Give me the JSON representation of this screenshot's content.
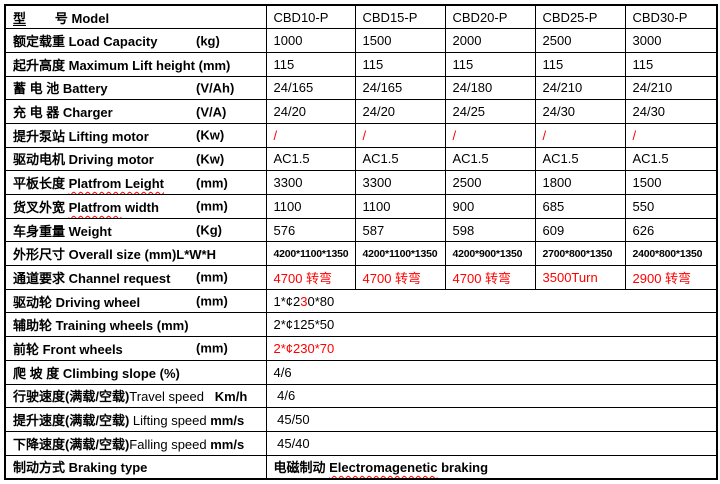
{
  "colors": {
    "text": "#000000",
    "red": "#ff0000",
    "border": "#000000",
    "background": "#ffffff"
  },
  "table": {
    "models": [
      "CBD10-P",
      "CBD15-P",
      "CBD20-P",
      "CBD25-P",
      "CBD30-P"
    ],
    "rows": [
      {
        "name": "model",
        "label": [
          {
            "t": "型",
            "u": 1
          },
          {
            "t": "        号 "
          },
          {
            "t": "Model"
          }
        ],
        "cells": [
          [
            {
              "t": "CBD10-P"
            }
          ],
          [
            {
              "t": "CBD15-P"
            }
          ],
          [
            {
              "t": "CBD20-P"
            }
          ],
          [
            {
              "t": "CBD25-P"
            }
          ],
          [
            {
              "t": "CBD30-P"
            }
          ]
        ]
      },
      {
        "name": "load-capacity",
        "label": [
          {
            "t": "额定载重 Load Capacity"
          },
          {
            "t": "(kg)",
            "unit": 1
          }
        ],
        "cells": [
          [
            {
              "t": "1000"
            }
          ],
          [
            {
              "t": "1500"
            }
          ],
          [
            {
              "t": "2000"
            }
          ],
          [
            {
              "t": "2500"
            }
          ],
          [
            {
              "t": "3000"
            }
          ]
        ]
      },
      {
        "name": "max-lift-height",
        "label": [
          {
            "t": "起升高度 Maximum Lift height (mm)"
          }
        ],
        "cells": [
          [
            {
              "t": "115"
            }
          ],
          [
            {
              "t": "115"
            }
          ],
          [
            {
              "t": "115"
            }
          ],
          [
            {
              "t": "115"
            }
          ],
          [
            {
              "t": "115"
            }
          ]
        ]
      },
      {
        "name": "battery",
        "label": [
          {
            "t": "蓄 电 池 Battery"
          },
          {
            "t": "(V/Ah)",
            "unit": 1
          }
        ],
        "cells": [
          [
            {
              "t": "24/165"
            }
          ],
          [
            {
              "t": "24/165"
            }
          ],
          [
            {
              "t": "24/180"
            }
          ],
          [
            {
              "t": "24/210"
            }
          ],
          [
            {
              "t": "24/210"
            }
          ]
        ]
      },
      {
        "name": "charger",
        "label": [
          {
            "t": "充 电 器 Charger"
          },
          {
            "t": "(V/A)",
            "unit": 1
          }
        ],
        "cells": [
          [
            {
              "t": "24/20"
            }
          ],
          [
            {
              "t": "24/20"
            }
          ],
          [
            {
              "t": "24/25"
            }
          ],
          [
            {
              "t": "24/30"
            }
          ],
          [
            {
              "t": "24/30"
            }
          ]
        ]
      },
      {
        "name": "lifting-motor",
        "label": [
          {
            "t": "提升泵站 Lifting motor"
          },
          {
            "t": "(Kw)",
            "unit": 1
          }
        ],
        "cells": [
          [
            {
              "t": "/",
              "red": 1
            }
          ],
          [
            {
              "t": "/",
              "red": 1
            }
          ],
          [
            {
              "t": "/",
              "red": 1
            }
          ],
          [
            {
              "t": "/",
              "red": 1
            }
          ],
          [
            {
              "t": "/",
              "red": 1
            }
          ]
        ]
      },
      {
        "name": "driving-motor",
        "label": [
          {
            "t": "驱动电机 Driving motor"
          },
          {
            "t": "(Kw)",
            "unit": 1
          }
        ],
        "cells": [
          [
            {
              "t": "AC1.5"
            }
          ],
          [
            {
              "t": "AC1.5"
            }
          ],
          [
            {
              "t": "AC1.5"
            }
          ],
          [
            {
              "t": "AC1.5"
            }
          ],
          [
            {
              "t": "AC1.5"
            }
          ]
        ]
      },
      {
        "name": "platform-length",
        "label": [
          {
            "t": "平板长度 "
          },
          {
            "t": "Platfrom Leight",
            "wavy": 1
          },
          {
            "t": "(mm)",
            "unit": 1
          }
        ],
        "cells": [
          [
            {
              "t": "3300"
            }
          ],
          [
            {
              "t": "3300"
            }
          ],
          [
            {
              "t": "2500"
            }
          ],
          [
            {
              "t": "1800"
            }
          ],
          [
            {
              "t": "1500"
            }
          ]
        ]
      },
      {
        "name": "platform-width",
        "label": [
          {
            "t": "货叉外宽 "
          },
          {
            "t": "Platfrom",
            "wavy": 1
          },
          {
            "t": " width"
          },
          {
            "t": "(mm)",
            "unit": 1
          }
        ],
        "cells": [
          [
            {
              "t": "1100"
            }
          ],
          [
            {
              "t": "1100"
            }
          ],
          [
            {
              "t": "900"
            }
          ],
          [
            {
              "t": "685"
            }
          ],
          [
            {
              "t": "550"
            }
          ]
        ]
      },
      {
        "name": "weight",
        "label": [
          {
            "t": "车身重量 Weight"
          },
          {
            "t": "(Kg)",
            "unit": 1
          }
        ],
        "cells": [
          [
            {
              "t": "576"
            }
          ],
          [
            {
              "t": "587"
            }
          ],
          [
            {
              "t": "598"
            }
          ],
          [
            {
              "t": "609"
            }
          ],
          [
            {
              "t": "626"
            }
          ]
        ]
      },
      {
        "name": "overall-size",
        "small": 1,
        "label": [
          {
            "t": "外形尺寸 Overall size (mm)L*W*H"
          }
        ],
        "cells": [
          [
            {
              "t": "4200*1100*1350"
            }
          ],
          [
            {
              "t": "4200*1100*1350"
            }
          ],
          [
            {
              "t": "4200*900*1350"
            }
          ],
          [
            {
              "t": "2700*800*1350"
            }
          ],
          [
            {
              "t": "2400*800*1350"
            }
          ]
        ]
      },
      {
        "name": "channel-request",
        "label": [
          {
            "t": "通道要求 Channel request"
          },
          {
            "t": "(mm)",
            "unit": 1
          }
        ],
        "cells": [
          [
            {
              "t": "4700 转弯",
              "red": 1
            }
          ],
          [
            {
              "t": "4700 转弯",
              "red": 1
            }
          ],
          [
            {
              "t": "4700 转弯",
              "red": 1
            }
          ],
          [
            {
              "t": "3500Turn",
              "red": 1
            }
          ],
          [
            {
              "t": "2900 转弯",
              "red": 1
            }
          ]
        ]
      },
      {
        "name": "driving-wheel",
        "label": [
          {
            "t": "驱动轮 Driving wheel"
          },
          {
            "t": "(mm)",
            "unit": 1
          }
        ],
        "span_cell": [
          {
            "t": "1*¢2"
          },
          {
            "t": "3",
            "red": 1
          },
          {
            "t": "0*80"
          }
        ]
      },
      {
        "name": "training-wheels",
        "label": [
          {
            "t": "辅助轮 Training wheels (mm)"
          }
        ],
        "span_cell": [
          {
            "t": "2*¢125*50"
          }
        ]
      },
      {
        "name": "front-wheels",
        "label": [
          {
            "t": "前轮 Front wheels"
          },
          {
            "t": "(mm)",
            "unit": 1
          }
        ],
        "span_cell": [
          {
            "t": "2*¢230*70",
            "red": 1
          }
        ]
      },
      {
        "name": "climbing-slope",
        "label": [
          {
            "t": "爬 坡 度 Climbing slope (%)"
          }
        ],
        "span_cell": [
          {
            "t": "4/6"
          }
        ]
      },
      {
        "name": "travel-speed",
        "label": [
          {
            "t": "行驶速度(满载/空载)"
          },
          {
            "t": "Travel speed",
            "nb": 1
          },
          {
            "t": "   Km/h"
          }
        ],
        "span_cell": [
          {
            "t": " 4/6"
          }
        ]
      },
      {
        "name": "lifting-speed",
        "label": [
          {
            "t": "提升速度(满载/空载) "
          },
          {
            "t": "Lifting speed ",
            "nb": 1
          },
          {
            "t": "mm/s"
          }
        ],
        "span_cell": [
          {
            "t": " 45/50"
          }
        ]
      },
      {
        "name": "falling-speed",
        "label": [
          {
            "t": "下降速度(满载/空载)"
          },
          {
            "t": "Falling speed ",
            "nb": 1
          },
          {
            "t": "mm/s"
          }
        ],
        "span_cell": [
          {
            "t": " 45/40"
          }
        ]
      },
      {
        "name": "braking-type",
        "label": [
          {
            "t": "制动方式 "
          },
          {
            "t": "Braking type"
          }
        ],
        "span_cell": [
          {
            "t": "电磁制动 ",
            "b": 1
          },
          {
            "t": "Electromagenetic",
            "b": 1,
            "wavy": 1
          },
          {
            "t": " braking",
            "b": 1
          }
        ]
      }
    ]
  }
}
